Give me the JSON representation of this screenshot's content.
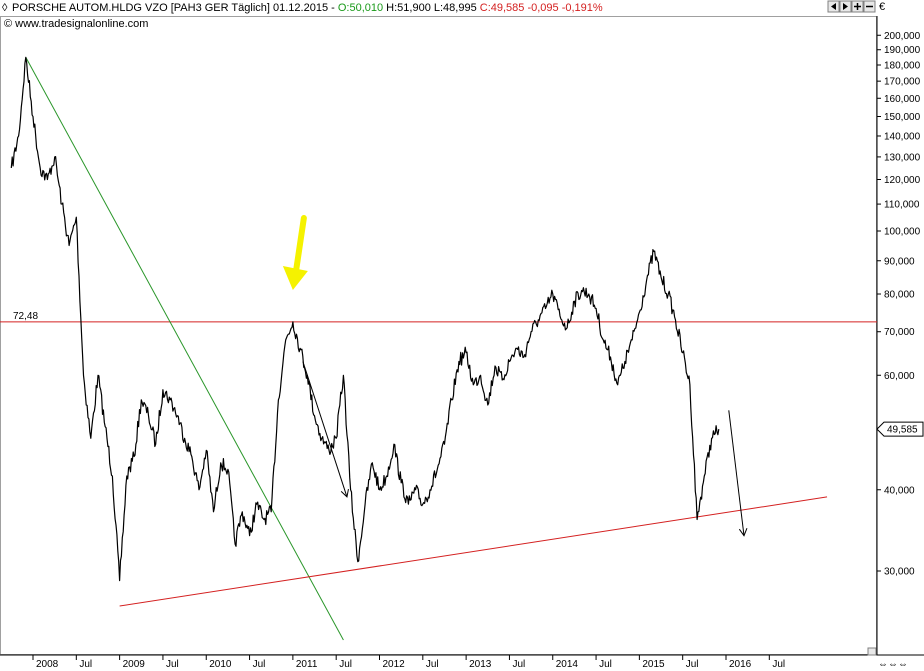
{
  "header": {
    "symbol_name": "PORSCHE AUTOM.HLDG VZO [PAH3 GER  Täglich] 01.12.2015 - ",
    "open_text": "O:50,010",
    "hl_text": " H:51,900 L:48,995 ",
    "close_text": "C:49,585 -0,095 -0,191%",
    "copyright": "© www.tradesignalonline.com",
    "currency": "€",
    "colors": {
      "open": "#1a9a1a",
      "close": "#d42020",
      "text": "#000000"
    }
  },
  "toolbar": {
    "buttons": [
      {
        "name": "scroll-left-button",
        "icon": "arrow-left-icon"
      },
      {
        "name": "scroll-right-button",
        "icon": "arrow-right-icon"
      },
      {
        "name": "zoom-in-button",
        "icon": "plus-icon"
      },
      {
        "name": "zoom-out-button",
        "icon": "minus-icon"
      }
    ]
  },
  "chart_data": {
    "type": "line",
    "scale": "log",
    "ylim": [
      24000,
      215000
    ],
    "y_ticks": [
      30000,
      40000,
      60000,
      70000,
      80000,
      90000,
      100000,
      110000,
      120000,
      130000,
      140000,
      150000,
      160000,
      170000,
      180000,
      190000,
      200000
    ],
    "y_tick_labels": [
      "30,000",
      "40,000",
      "60,000",
      "70,000",
      "80,000",
      "90,000",
      "100,000",
      "110,000",
      "120,000",
      "130,000",
      "140,000",
      "150,000",
      "160,000",
      "170,000",
      "180,000",
      "190,000",
      "200,000"
    ],
    "x_ticks": [
      "2008",
      "Jul",
      "2009",
      "Jul",
      "2010",
      "Jul",
      "2011",
      "Jul",
      "2012",
      "Jul",
      "2013",
      "Jul",
      "2014",
      "Jul",
      "2015",
      "Jul",
      "2016",
      "Jul"
    ],
    "x_tick_dates": [
      "2008-01",
      "2008-07",
      "2009-01",
      "2009-07",
      "2010-01",
      "2010-07",
      "2011-01",
      "2011-07",
      "2012-01",
      "2012-07",
      "2013-01",
      "2013-07",
      "2014-01",
      "2014-07",
      "2015-01",
      "2015-07",
      "2016-01",
      "2016-07"
    ],
    "series": [
      {
        "color": "#000000",
        "points": [
          [
            "2007-10",
            125000
          ],
          [
            "2007-11",
            140000
          ],
          [
            "2007-12",
            185000
          ],
          [
            "2008-01",
            150000
          ],
          [
            "2008-02",
            125000
          ],
          [
            "2008-03",
            120000
          ],
          [
            "2008-04",
            130000
          ],
          [
            "2008-05",
            110000
          ],
          [
            "2008-06",
            95000
          ],
          [
            "2008-07",
            105000
          ],
          [
            "2008-08",
            60000
          ],
          [
            "2008-09",
            48000
          ],
          [
            "2008-10",
            60000
          ],
          [
            "2008-11",
            50000
          ],
          [
            "2008-12",
            42000
          ],
          [
            "2009-01",
            29000
          ],
          [
            "2009-02",
            42000
          ],
          [
            "2009-03",
            45000
          ],
          [
            "2009-04",
            55000
          ],
          [
            "2009-05",
            52000
          ],
          [
            "2009-06",
            47000
          ],
          [
            "2009-07",
            57000
          ],
          [
            "2009-08",
            55000
          ],
          [
            "2009-09",
            52000
          ],
          [
            "2009-10",
            48000
          ],
          [
            "2009-11",
            45000
          ],
          [
            "2009-12",
            40000
          ],
          [
            "2010-01",
            46000
          ],
          [
            "2010-02",
            37000
          ],
          [
            "2010-03",
            44000
          ],
          [
            "2010-04",
            43000
          ],
          [
            "2010-05",
            33000
          ],
          [
            "2010-06",
            37000
          ],
          [
            "2010-07",
            34000
          ],
          [
            "2010-08",
            38000
          ],
          [
            "2010-09",
            36000
          ],
          [
            "2010-10",
            37000
          ],
          [
            "2010-11",
            55000
          ],
          [
            "2010-12",
            68000
          ],
          [
            "2011-01",
            72480
          ],
          [
            "2011-02",
            66000
          ],
          [
            "2011-03",
            60000
          ],
          [
            "2011-04",
            52000
          ],
          [
            "2011-05",
            48000
          ],
          [
            "2011-06",
            46000
          ],
          [
            "2011-07",
            48000
          ],
          [
            "2011-08",
            60000
          ],
          [
            "2011-09",
            40000
          ],
          [
            "2011-10",
            31000
          ],
          [
            "2011-11",
            38000
          ],
          [
            "2011-12",
            44000
          ],
          [
            "2012-01",
            40000
          ],
          [
            "2012-02",
            42000
          ],
          [
            "2012-03",
            47000
          ],
          [
            "2012-04",
            41000
          ],
          [
            "2012-05",
            38000
          ],
          [
            "2012-06",
            40000
          ],
          [
            "2012-07",
            38000
          ],
          [
            "2012-08",
            40000
          ],
          [
            "2012-09",
            43000
          ],
          [
            "2012-10",
            47000
          ],
          [
            "2012-11",
            55000
          ],
          [
            "2012-12",
            63000
          ],
          [
            "2013-01",
            65000
          ],
          [
            "2013-02",
            58000
          ],
          [
            "2013-03",
            60000
          ],
          [
            "2013-04",
            54000
          ],
          [
            "2013-05",
            62000
          ],
          [
            "2013-06",
            59000
          ],
          [
            "2013-07",
            63000
          ],
          [
            "2013-08",
            66000
          ],
          [
            "2013-09",
            64000
          ],
          [
            "2013-10",
            70000
          ],
          [
            "2013-11",
            73000
          ],
          [
            "2013-12",
            76000
          ],
          [
            "2014-01",
            80000
          ],
          [
            "2014-02",
            74000
          ],
          [
            "2014-03",
            71000
          ],
          [
            "2014-04",
            78000
          ],
          [
            "2014-05",
            81000
          ],
          [
            "2014-06",
            80000
          ],
          [
            "2014-07",
            76000
          ],
          [
            "2014-08",
            68000
          ],
          [
            "2014-09",
            64000
          ],
          [
            "2014-10",
            58000
          ],
          [
            "2014-11",
            63000
          ],
          [
            "2014-12",
            68000
          ],
          [
            "2015-01",
            75000
          ],
          [
            "2015-02",
            84000
          ],
          [
            "2015-03",
            93000
          ],
          [
            "2015-04",
            85000
          ],
          [
            "2015-05",
            80000
          ],
          [
            "2015-06",
            73000
          ],
          [
            "2015-07",
            65000
          ],
          [
            "2015-08",
            58000
          ],
          [
            "2015-09",
            36000
          ],
          [
            "2015-10",
            42000
          ],
          [
            "2015-11",
            48000
          ],
          [
            "2015-12",
            49585
          ]
        ]
      }
    ],
    "annotations": {
      "resistance_level": {
        "value": 72480,
        "label": "72,48",
        "color": "#d42020"
      },
      "last_price": {
        "value": 49585,
        "label": "49,585"
      },
      "green_trendline": {
        "from": [
          "2007-12",
          185000
        ],
        "to": [
          "2011-08",
          23500
        ],
        "color": "#2a962a"
      },
      "red_trendline": {
        "from": [
          "2009-01",
          26500
        ],
        "to": [
          "2017-03",
          39000
        ],
        "color": "#d42020"
      },
      "yellow_arrow": {
        "at": [
          "2011-01",
          80000
        ],
        "color": "#f5f200"
      },
      "black_arrows": [
        {
          "from": [
            "2011-01",
            63000
          ],
          "to": [
            "2011-06",
            39000
          ]
        },
        {
          "from": [
            "2015-12",
            53000
          ],
          "to": [
            "2016-01",
            34000
          ]
        }
      ]
    },
    "grid": false
  }
}
